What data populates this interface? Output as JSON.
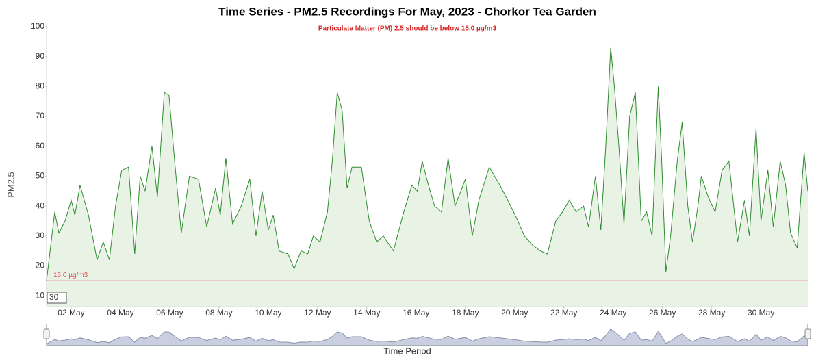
{
  "chart_data": {
    "type": "area",
    "title": "Time Series - PM2.5 Recordings For May, 2023 - Chorkor Tea Garden",
    "subtitle": "Particulate Matter (PM) 2.5 should be below 15.0 µg/m3",
    "y_label": "PM2.5",
    "x_label": "Time Period",
    "threshold": {
      "value": 15,
      "label": "15.0 µg/m3",
      "color": "#e05050"
    },
    "input_value": "30",
    "color": "#2e8b2e",
    "fill": "#e8f3e6",
    "grid": false,
    "x": [
      1.0,
      1.1,
      1.33,
      1.5,
      1.75,
      2.0,
      2.15,
      2.36,
      2.7,
      3.05,
      3.3,
      3.55,
      3.8,
      4.05,
      4.33,
      4.58,
      4.8,
      5.0,
      5.28,
      5.5,
      5.78,
      5.97,
      6.2,
      6.47,
      6.8,
      7.17,
      7.5,
      7.86,
      8.05,
      8.28,
      8.55,
      8.9,
      9.25,
      9.5,
      9.75,
      10.0,
      10.2,
      10.44,
      10.8,
      11.05,
      11.33,
      11.6,
      11.83,
      12.1,
      12.4,
      12.6,
      12.8,
      13.0,
      13.2,
      13.4,
      13.78,
      14.1,
      14.4,
      14.67,
      15.08,
      15.5,
      15.83,
      16.05,
      16.25,
      16.47,
      16.75,
      17.03,
      17.3,
      17.58,
      18.0,
      18.28,
      18.55,
      18.97,
      19.4,
      19.72,
      20.08,
      20.4,
      20.72,
      21.05,
      21.33,
      21.67,
      21.94,
      22.22,
      22.5,
      22.8,
      23.0,
      23.28,
      23.5,
      23.7,
      23.9,
      24.05,
      24.25,
      24.44,
      24.67,
      24.9,
      25.14,
      25.36,
      25.58,
      25.83,
      25.97,
      26.14,
      26.33,
      26.6,
      26.8,
      27.03,
      27.22,
      27.44,
      27.58,
      27.86,
      28.14,
      28.42,
      28.7,
      29.05,
      29.33,
      29.53,
      29.8,
      30.0,
      30.28,
      30.5,
      30.78,
      31.0,
      31.2,
      31.47,
      31.75,
      31.9
    ],
    "values": [
      15,
      22,
      38,
      31,
      35,
      42,
      37,
      47,
      37,
      22,
      28,
      22,
      40,
      52,
      53,
      24,
      50,
      45,
      60,
      43,
      78,
      77,
      55,
      31,
      50,
      49,
      33,
      46,
      37,
      56,
      34,
      40,
      49,
      30,
      45,
      32,
      37,
      25,
      24,
      19,
      25,
      24,
      30,
      28,
      38,
      55,
      78,
      72,
      46,
      53,
      53,
      35,
      28,
      30,
      25,
      38,
      47,
      45,
      55,
      48,
      40,
      38,
      56,
      40,
      49,
      30,
      42,
      53,
      47,
      42,
      36,
      30,
      27,
      25,
      24,
      35,
      38,
      42,
      38,
      40,
      33,
      50,
      32,
      60,
      93,
      80,
      58,
      34,
      70,
      78,
      35,
      38,
      30,
      80,
      55,
      18,
      30,
      55,
      68,
      40,
      28,
      40,
      50,
      43,
      38,
      52,
      55,
      28,
      42,
      30,
      66,
      35,
      52,
      33,
      55,
      47,
      31,
      26,
      58,
      45
    ],
    "xlim": [
      1,
      31.9
    ],
    "xticks": [
      {
        "value": 2,
        "label": "02 May"
      },
      {
        "value": 4,
        "label": "04 May"
      },
      {
        "value": 6,
        "label": "06 May"
      },
      {
        "value": 8,
        "label": "08 May"
      },
      {
        "value": 10,
        "label": "10 May"
      },
      {
        "value": 12,
        "label": "12 May"
      },
      {
        "value": 14,
        "label": "14 May"
      },
      {
        "value": 16,
        "label": "16 May"
      },
      {
        "value": 18,
        "label": "18 May"
      },
      {
        "value": 20,
        "label": "20 May"
      },
      {
        "value": 22,
        "label": "22 May"
      },
      {
        "value": 24,
        "label": "24 May"
      },
      {
        "value": 26,
        "label": "26 May"
      },
      {
        "value": 28,
        "label": "28 May"
      },
      {
        "value": 30,
        "label": "30 May"
      }
    ],
    "ylim": [
      6.6,
      100
    ],
    "yticks": [
      10,
      20,
      30,
      40,
      50,
      60,
      70,
      80,
      90,
      100
    ]
  }
}
